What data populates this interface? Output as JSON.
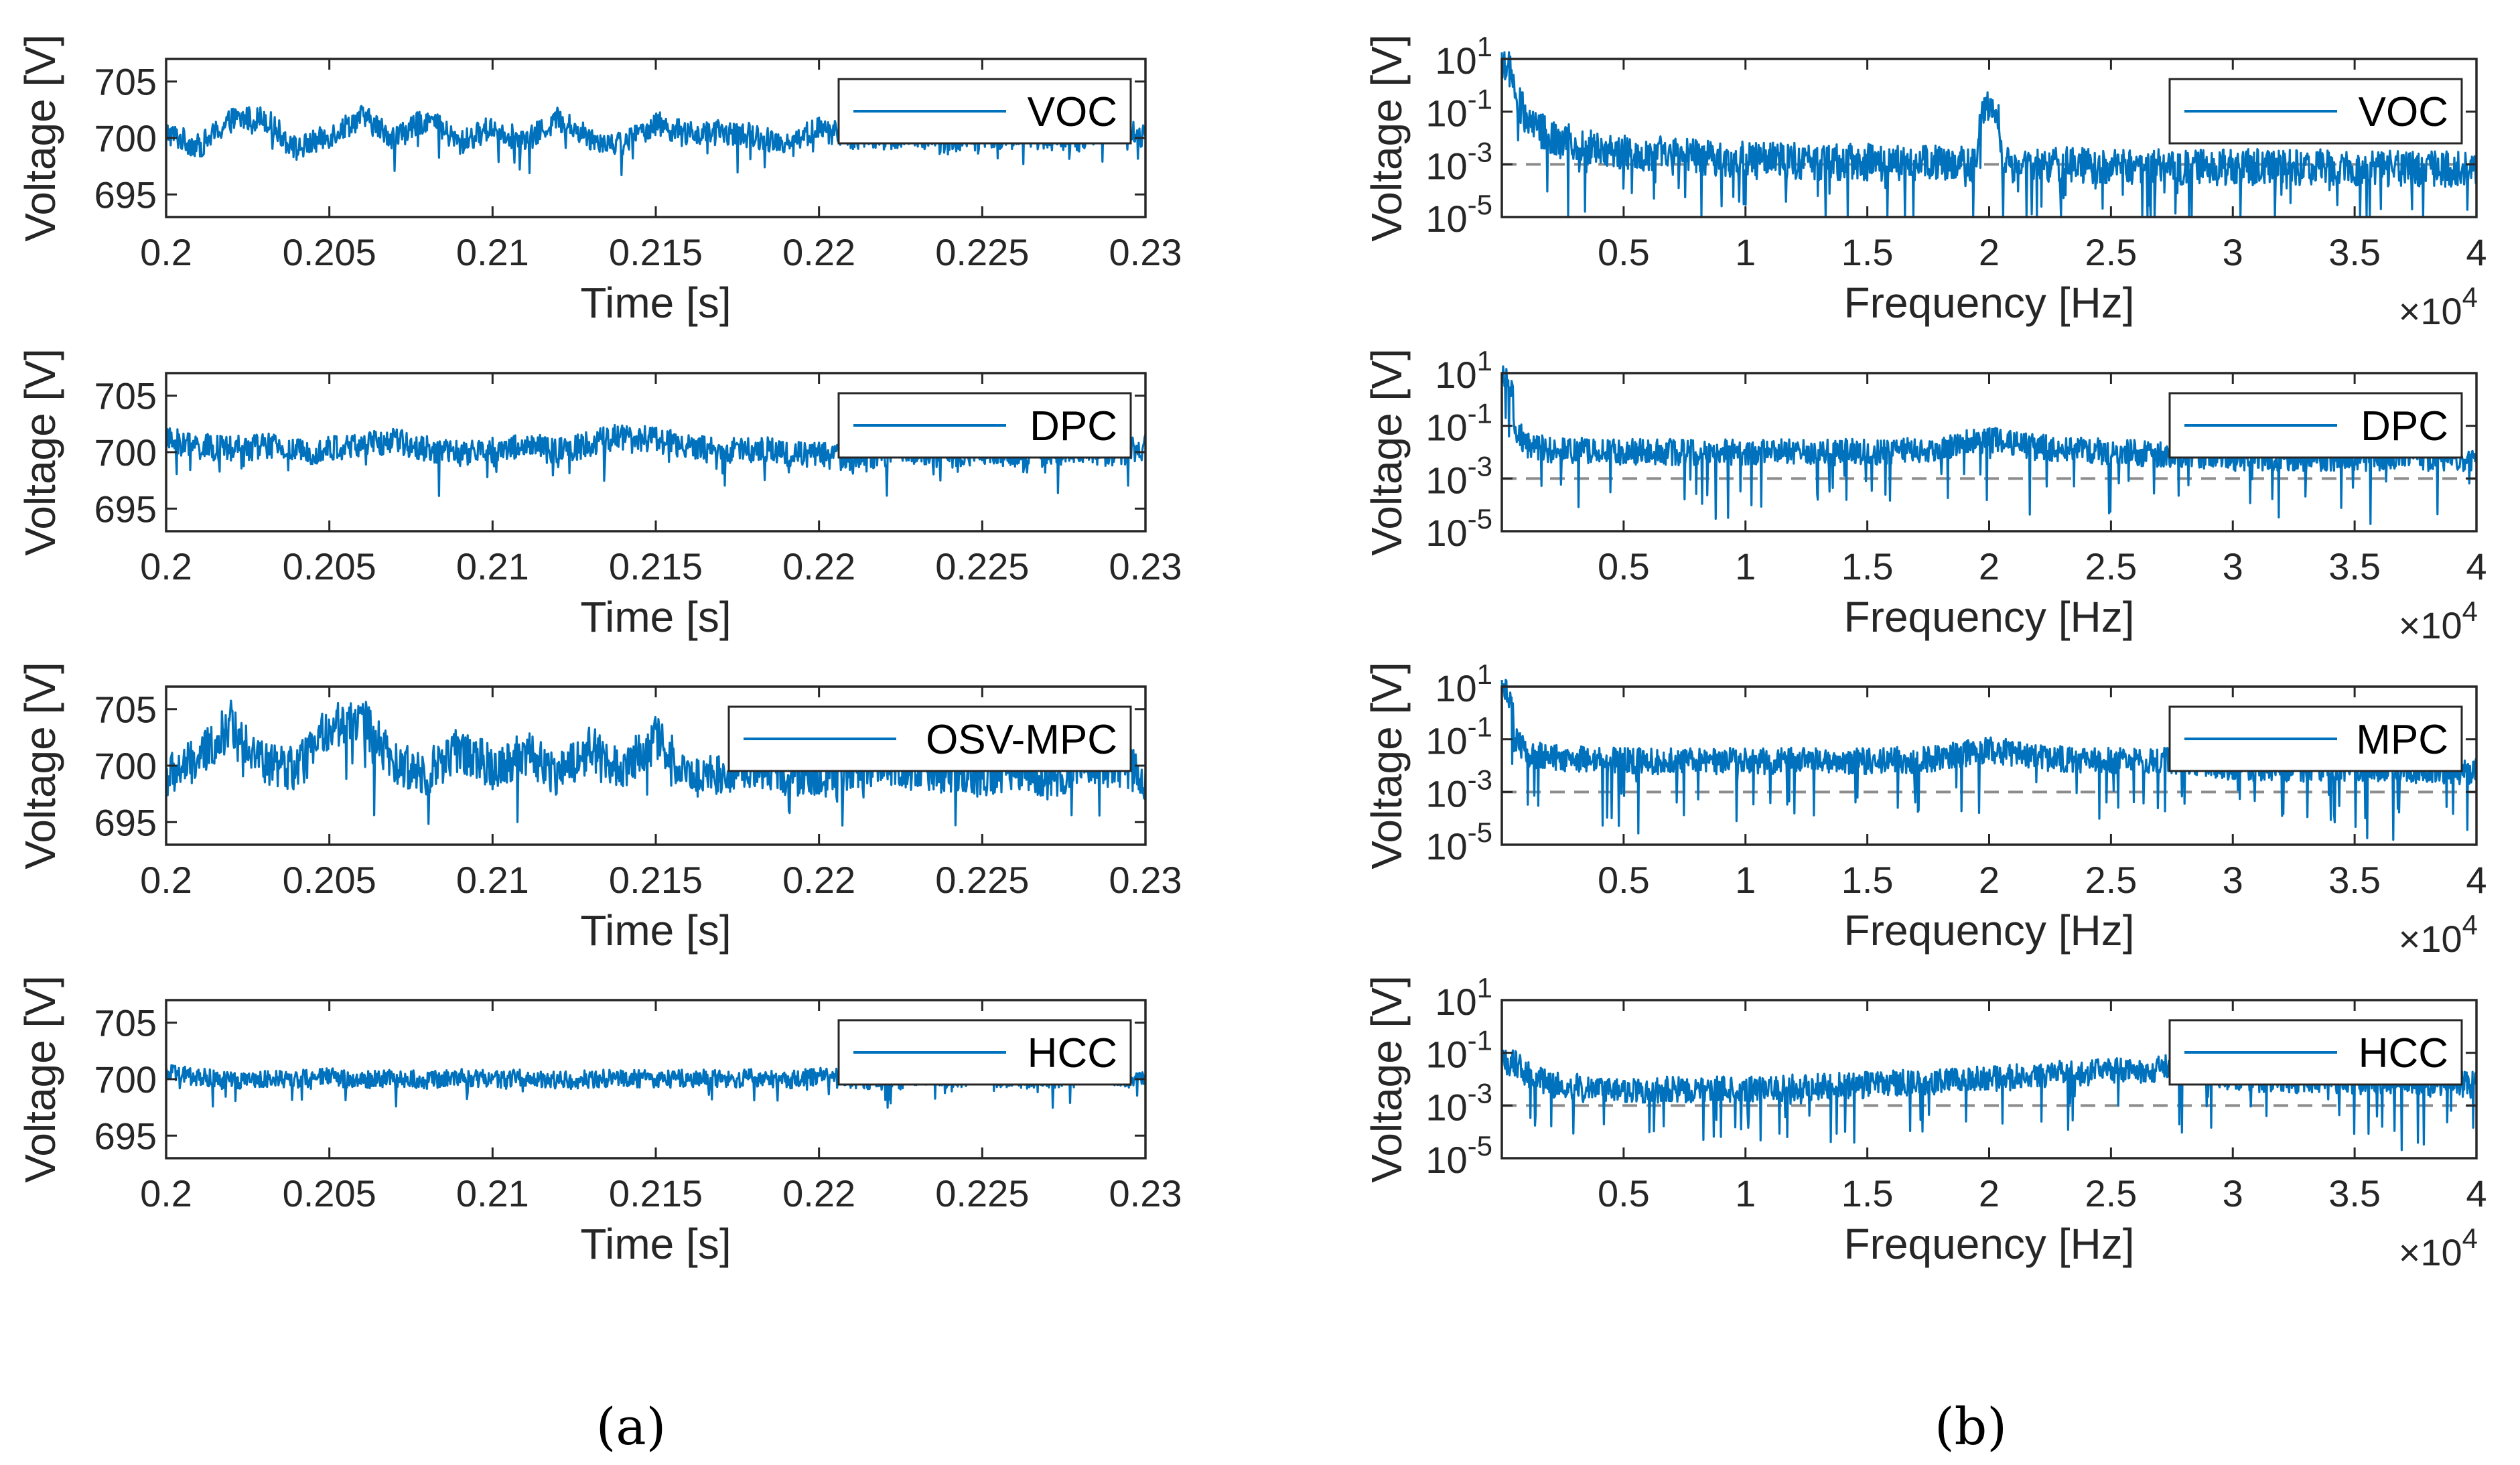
{
  "colors": {
    "series": "#0072BD",
    "axes": "#262626",
    "refline": "#8c8c8c",
    "background": "#ffffff"
  },
  "panel_labels": {
    "a": "(a)",
    "b": "(b)"
  },
  "chart_data": [
    {
      "type": "line",
      "panel": "a",
      "legend": "VOC",
      "legend_location": "top-right",
      "xlabel": "Time [s]",
      "ylabel": "Voltage [V]",
      "xlim": [
        0.2,
        0.23
      ],
      "ylim": [
        693,
        707
      ],
      "xticks": [
        0.2,
        0.205,
        0.21,
        0.215,
        0.22,
        0.225,
        0.23
      ],
      "xtick_labels": [
        "0.2",
        "0.205",
        "0.21",
        "0.215",
        "0.22",
        "0.225",
        "0.23"
      ],
      "yticks": [
        695,
        700,
        705
      ],
      "ytick_labels": [
        "695",
        "700",
        "705"
      ],
      "x": [
        0.2,
        0.201,
        0.202,
        0.203,
        0.204,
        0.205,
        0.206,
        0.207,
        0.208,
        0.209,
        0.21,
        0.211,
        0.212,
        0.213,
        0.214,
        0.215,
        0.216,
        0.217,
        0.218,
        0.219,
        0.22,
        0.221,
        0.222,
        0.223,
        0.224,
        0.225,
        0.226,
        0.227,
        0.228,
        0.229,
        0.23
      ],
      "y": [
        700.5,
        699.2,
        701.6,
        701.8,
        699.0,
        700.2,
        701.9,
        700.0,
        701.7,
        699.5,
        701.0,
        699.6,
        701.7,
        700.0,
        699.5,
        701.3,
        700.3,
        700.5,
        700.2,
        699.6,
        700.8,
        700.1,
        699.9,
        700.2,
        699.6,
        700.1,
        700.3,
        700.0,
        699.8,
        701.4,
        700.0
      ],
      "noise": 2.2
    },
    {
      "type": "line",
      "panel": "a",
      "legend": "DPC",
      "legend_location": "top-right",
      "xlabel": "Time [s]",
      "ylabel": "Voltage [V]",
      "xlim": [
        0.2,
        0.23
      ],
      "ylim": [
        693,
        707
      ],
      "xticks": [
        0.2,
        0.205,
        0.21,
        0.215,
        0.22,
        0.225,
        0.23
      ],
      "xtick_labels": [
        "0.2",
        "0.205",
        "0.21",
        "0.215",
        "0.22",
        "0.225",
        "0.23"
      ],
      "yticks": [
        695,
        700,
        705
      ],
      "ytick_labels": [
        "695",
        "700",
        "705"
      ],
      "x": [
        0.2,
        0.201,
        0.202,
        0.203,
        0.204,
        0.205,
        0.206,
        0.207,
        0.208,
        0.209,
        0.21,
        0.211,
        0.212,
        0.213,
        0.214,
        0.215,
        0.216,
        0.217,
        0.218,
        0.219,
        0.22,
        0.221,
        0.222,
        0.223,
        0.224,
        0.225,
        0.226,
        0.227,
        0.228,
        0.229,
        0.23
      ],
      "y": [
        701.0,
        700.5,
        700.2,
        700.6,
        700.0,
        700.3,
        700.6,
        701.0,
        700.3,
        699.8,
        700.2,
        700.6,
        700.0,
        700.8,
        701.4,
        701.2,
        700.4,
        700.1,
        700.3,
        700.0,
        699.8,
        699.5,
        699.9,
        700.1,
        699.7,
        700.0,
        699.8,
        699.9,
        700.2,
        699.9,
        700.4
      ],
      "noise": 2.4
    },
    {
      "type": "line",
      "panel": "a",
      "legend": "OSV-MPC",
      "legend_location": "top-right",
      "xlabel": "Time [s]",
      "ylabel": "Voltage [V]",
      "xlim": [
        0.2,
        0.23
      ],
      "ylim": [
        693,
        707
      ],
      "xticks": [
        0.2,
        0.205,
        0.21,
        0.215,
        0.22,
        0.225,
        0.23
      ],
      "xtick_labels": [
        "0.2",
        "0.205",
        "0.21",
        "0.215",
        "0.22",
        "0.225",
        "0.23"
      ],
      "yticks": [
        695,
        700,
        705
      ],
      "ytick_labels": [
        "695",
        "700",
        "705"
      ],
      "x": [
        0.2,
        0.201,
        0.202,
        0.203,
        0.204,
        0.205,
        0.206,
        0.207,
        0.208,
        0.209,
        0.21,
        0.211,
        0.212,
        0.213,
        0.214,
        0.215,
        0.216,
        0.217,
        0.218,
        0.219,
        0.22,
        0.221,
        0.222,
        0.223,
        0.224,
        0.225,
        0.226,
        0.227,
        0.228,
        0.229,
        0.23
      ],
      "y": [
        699.0,
        700.5,
        703.8,
        700.2,
        699.6,
        703.5,
        704.2,
        700.0,
        699.4,
        701.5,
        699.8,
        701.2,
        699.3,
        701.5,
        699.8,
        702.5,
        699.0,
        699.4,
        700.2,
        699.3,
        698.8,
        699.8,
        700.4,
        699.6,
        699.6,
        698.8,
        700.0,
        698.8,
        700.2,
        700.4,
        698.9
      ],
      "noise": 4.0
    },
    {
      "type": "line",
      "panel": "a",
      "legend": "HCC",
      "legend_location": "top-right",
      "xlabel": "Time [s]",
      "ylabel": "Voltage [V]",
      "xlim": [
        0.2,
        0.23
      ],
      "ylim": [
        693,
        707
      ],
      "xticks": [
        0.2,
        0.205,
        0.21,
        0.215,
        0.22,
        0.225,
        0.23
      ],
      "xtick_labels": [
        "0.2",
        "0.205",
        "0.21",
        "0.215",
        "0.22",
        "0.225",
        "0.23"
      ],
      "yticks": [
        695,
        700,
        705
      ],
      "ytick_labels": [
        "695",
        "700",
        "705"
      ],
      "x": [
        0.2,
        0.201,
        0.202,
        0.203,
        0.204,
        0.205,
        0.206,
        0.207,
        0.208,
        0.209,
        0.21,
        0.211,
        0.212,
        0.213,
        0.214,
        0.215,
        0.216,
        0.217,
        0.218,
        0.219,
        0.22,
        0.221,
        0.222,
        0.223,
        0.224,
        0.225,
        0.226,
        0.227,
        0.228,
        0.229,
        0.23
      ],
      "y": [
        700.5,
        700.2,
        699.8,
        700.1,
        700.0,
        700.2,
        699.9,
        700.1,
        699.9,
        700.2,
        700.0,
        700.1,
        699.9,
        700.0,
        700.2,
        699.9,
        700.1,
        700.0,
        700.1,
        699.9,
        700.3,
        700.0,
        699.8,
        700.1,
        700.0,
        700.2,
        699.9,
        700.0,
        700.1,
        700.2,
        699.9
      ],
      "noise": 1.6
    },
    {
      "type": "line",
      "panel": "b",
      "legend": "VOC",
      "legend_location": "top-right",
      "yscale": "log",
      "xlabel": "Frequency [Hz]",
      "ylabel": "Voltage [V]",
      "xlim": [
        0,
        40000
      ],
      "ylim": [
        1e-05,
        10
      ],
      "xticks": [
        5000,
        10000,
        15000,
        20000,
        25000,
        30000,
        35000,
        40000
      ],
      "xtick_labels": [
        "0.5",
        "1",
        "1.5",
        "2",
        "2.5",
        "3",
        "3.5",
        "4"
      ],
      "x_multiplier": "×10",
      "x_multiplier_exp": "4",
      "yticks": [
        10,
        0.1,
        0.001,
        1e-05
      ],
      "ytick_base": "10",
      "ytick_exps": [
        "1",
        "-1",
        "-3",
        "-5"
      ],
      "reference_line": 0.001,
      "x": [
        0,
        500,
        1000,
        1500,
        2000,
        3000,
        4000,
        5000,
        7500,
        10000,
        12500,
        15000,
        17500,
        19500,
        20000,
        20500,
        22500,
        25000,
        27500,
        30000,
        32500,
        35000,
        37500,
        40000
      ],
      "y": [
        10.0,
        0.3,
        0.05,
        0.02,
        0.01,
        0.006,
        0.004,
        0.003,
        0.002,
        0.0015,
        0.0013,
        0.0012,
        0.0011,
        0.001,
        0.18,
        0.001,
        0.0009,
        0.0009,
        0.0008,
        0.0008,
        0.0008,
        0.0007,
        0.0007,
        0.0006
      ],
      "noise_decades": 1.4
    },
    {
      "type": "line",
      "panel": "b",
      "legend": "DPC",
      "legend_location": "top-right",
      "yscale": "log",
      "xlabel": "Frequency [Hz]",
      "ylabel": "Voltage [V]",
      "xlim": [
        0,
        40000
      ],
      "ylim": [
        1e-05,
        10
      ],
      "xticks": [
        5000,
        10000,
        15000,
        20000,
        25000,
        30000,
        35000,
        40000
      ],
      "xtick_labels": [
        "0.5",
        "1",
        "1.5",
        "2",
        "2.5",
        "3",
        "3.5",
        "4"
      ],
      "x_multiplier": "×10",
      "x_multiplier_exp": "4",
      "yticks": [
        10,
        0.1,
        0.001,
        1e-05
      ],
      "ytick_base": "10",
      "ytick_exps": [
        "1",
        "-1",
        "-3",
        "-5"
      ],
      "reference_line": 0.001,
      "x": [
        0,
        500,
        1000,
        2000,
        5000,
        10000,
        15000,
        18000,
        20000,
        22000,
        25000,
        28000,
        30000,
        35000,
        40000
      ],
      "y": [
        10.0,
        0.06,
        0.02,
        0.012,
        0.01,
        0.01,
        0.01,
        0.012,
        0.03,
        0.015,
        0.01,
        0.008,
        0.006,
        0.006,
        0.006
      ],
      "noise_decades": 1.0
    },
    {
      "type": "line",
      "panel": "b",
      "legend": "MPC",
      "legend_location": "top-right",
      "yscale": "log",
      "xlabel": "Frequency [Hz]",
      "ylabel": "Voltage [V]",
      "xlim": [
        0,
        40000
      ],
      "ylim": [
        1e-05,
        10
      ],
      "xticks": [
        5000,
        10000,
        15000,
        20000,
        25000,
        30000,
        35000,
        40000
      ],
      "xtick_labels": [
        "0.5",
        "1",
        "1.5",
        "2",
        "2.5",
        "3",
        "3.5",
        "4"
      ],
      "x_multiplier": "×10",
      "x_multiplier_exp": "4",
      "yticks": [
        10,
        0.1,
        0.001,
        1e-05
      ],
      "ytick_base": "10",
      "ytick_exps": [
        "1",
        "-1",
        "-3",
        "-5"
      ],
      "reference_line": 0.001,
      "x": [
        0,
        500,
        1000,
        2000,
        5000,
        10000,
        15000,
        18000,
        20000,
        22000,
        25000,
        28000,
        30000,
        35000,
        40000
      ],
      "y": [
        10.0,
        0.1,
        0.03,
        0.02,
        0.015,
        0.015,
        0.015,
        0.018,
        0.04,
        0.02,
        0.015,
        0.015,
        0.008,
        0.007,
        0.006
      ],
      "noise_decades": 1.0
    },
    {
      "type": "line",
      "panel": "b",
      "legend": "HCC",
      "legend_location": "top-right",
      "yscale": "log",
      "xlabel": "Frequency [Hz]",
      "ylabel": "Voltage [V]",
      "xlim": [
        0,
        40000
      ],
      "ylim": [
        1e-05,
        10
      ],
      "xticks": [
        5000,
        10000,
        15000,
        20000,
        25000,
        30000,
        35000,
        40000
      ],
      "xtick_labels": [
        "0.5",
        "1",
        "1.5",
        "2",
        "2.5",
        "3",
        "3.5",
        "4"
      ],
      "x_multiplier": "×10",
      "x_multiplier_exp": "4",
      "yticks": [
        10,
        0.1,
        0.001,
        1e-05
      ],
      "ytick_base": "10",
      "ytick_exps": [
        "1",
        "-1",
        "-3",
        "-5"
      ],
      "reference_line": 0.001,
      "x": [
        0,
        500,
        1000,
        2000,
        5000,
        8000,
        10000,
        15000,
        20000,
        25000,
        27000,
        28000,
        30000,
        35000,
        40000
      ],
      "y": [
        0.05,
        0.04,
        0.015,
        0.006,
        0.004,
        0.004,
        0.004,
        0.006,
        0.01,
        0.02,
        0.025,
        0.03,
        0.01,
        0.008,
        0.006
      ],
      "noise_decades": 1.0
    }
  ]
}
